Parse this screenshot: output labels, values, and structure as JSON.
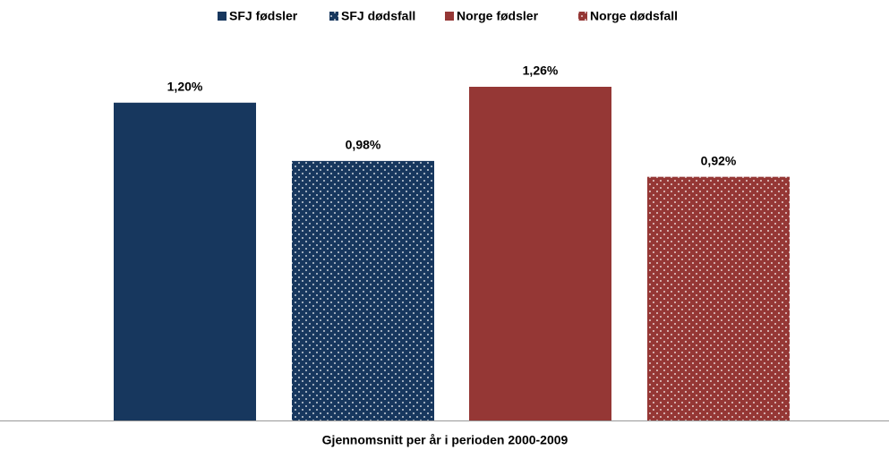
{
  "chart_data": {
    "type": "bar",
    "categories": [
      "Gjennomsnitt per år i perioden 2000-2009"
    ],
    "series": [
      {
        "name": "SFJ fødsler",
        "color": "#17375e",
        "pattern": "solid",
        "values": [
          1.2
        ],
        "value_labels": [
          "1,20%"
        ]
      },
      {
        "name": "SFJ dødsfall",
        "color": "#17375e",
        "pattern": "dots",
        "values": [
          0.98
        ],
        "value_labels": [
          "0,98%"
        ]
      },
      {
        "name": "Norge fødsler",
        "color": "#953735",
        "pattern": "solid",
        "values": [
          1.26
        ],
        "value_labels": [
          "1,26%"
        ]
      },
      {
        "name": "Norge dødsfall",
        "color": "#953735",
        "pattern": "dots",
        "values": [
          0.92
        ],
        "value_labels": [
          "0,92%"
        ]
      }
    ],
    "legend": "top"
  }
}
